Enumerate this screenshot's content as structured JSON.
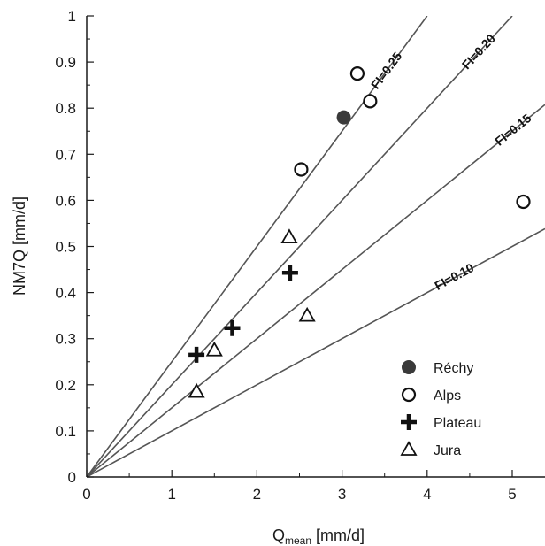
{
  "chart_data": {
    "type": "scatter",
    "title": "",
    "xlabel_main": "Q",
    "xlabel_sub": "mean",
    "xlabel_unit": " [mm/d]",
    "ylabel": "NM7Q [mm/d]",
    "xlim": [
      0,
      5.4
    ],
    "ylim": [
      0,
      1
    ],
    "x_ticks": [
      "0",
      "1",
      "2",
      "3",
      "4",
      "5"
    ],
    "y_ticks": [
      "0",
      "0.1",
      "0.2",
      "0.3",
      "0.4",
      "0.5",
      "0.6",
      "0.7",
      "0.8",
      "0.9",
      "1"
    ],
    "grid": false,
    "legend_position": "bottom-right",
    "reference_lines": [
      {
        "label": "FI=0.25",
        "slope": 0.25
      },
      {
        "label": "FI=0.20",
        "slope": 0.2
      },
      {
        "label": "FI=0.15",
        "slope": 0.15
      },
      {
        "label": "FI=0.10",
        "slope": 0.1
      }
    ],
    "series": [
      {
        "name": "Réchy",
        "marker": "filled-circle",
        "points": [
          [
            3.02,
            0.78
          ]
        ]
      },
      {
        "name": "Alps",
        "marker": "open-circle",
        "points": [
          [
            3.18,
            0.875
          ],
          [
            3.33,
            0.815
          ],
          [
            2.52,
            0.667
          ],
          [
            5.13,
            0.597
          ]
        ]
      },
      {
        "name": "Plateau",
        "marker": "plus",
        "points": [
          [
            1.29,
            0.265
          ],
          [
            1.71,
            0.323
          ],
          [
            2.39,
            0.443
          ]
        ]
      },
      {
        "name": "Jura",
        "marker": "open-triangle",
        "points": [
          [
            2.38,
            0.52
          ],
          [
            2.59,
            0.35
          ],
          [
            1.5,
            0.275
          ],
          [
            1.29,
            0.185
          ]
        ]
      }
    ],
    "colors": {
      "axis": "#1a1a1a",
      "ref_line": "#555555",
      "marker": "#111111",
      "filled_marker": "#3a3a3a"
    }
  }
}
